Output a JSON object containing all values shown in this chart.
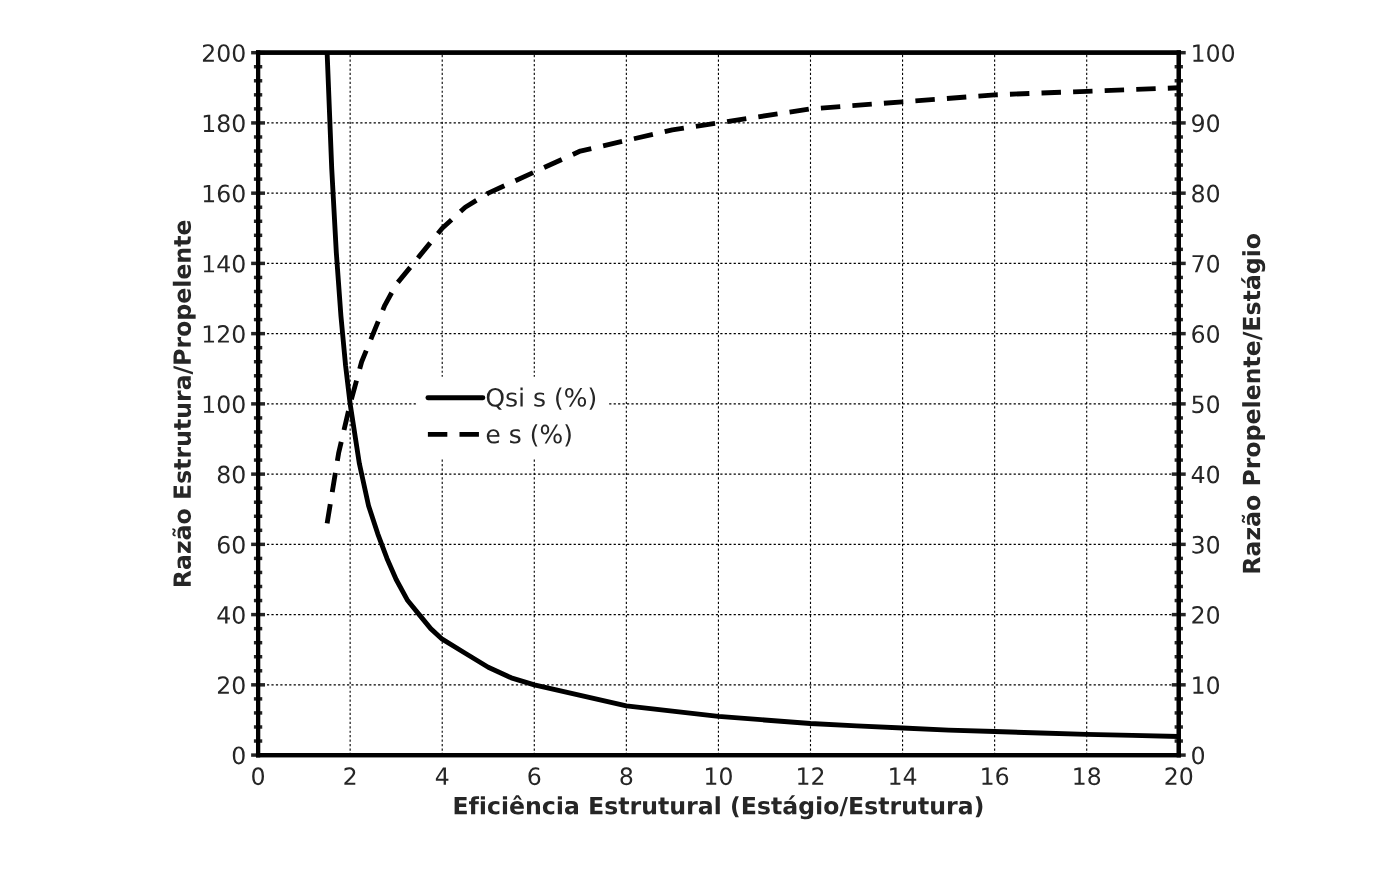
{
  "chart_data": {
    "type": "line",
    "xlabel": "Eficiência Estrutural (Estágio/Estrutura)",
    "ylabel": "Razão Estrutura/Propelente",
    "y2label": "Razão Propelente/Estágio",
    "series": [
      {
        "name": "Qsi s (%)",
        "color": "#000000",
        "line_style": "solid",
        "x": [
          1.5,
          1.6,
          1.7,
          1.8,
          1.9,
          2,
          2.2,
          2.4,
          2.6,
          2.8,
          3,
          3.25,
          3.5,
          3.75,
          4,
          4.5,
          5,
          5.5,
          6,
          7,
          8,
          9,
          10,
          11,
          12,
          13,
          14,
          15,
          16,
          17,
          18,
          19,
          20
        ],
        "values": [
          200,
          167,
          143,
          125,
          111,
          100,
          83,
          71,
          63,
          56,
          50,
          44,
          40,
          36,
          33,
          29,
          25,
          22,
          20,
          17,
          14,
          12.5,
          11,
          10,
          9,
          8.3,
          7.7,
          7.1,
          6.7,
          6.3,
          5.9,
          5.6,
          5.3
        ]
      },
      {
        "name": "e s (%)",
        "color": "#000000",
        "line_style": "dashed",
        "axis": "y2",
        "x": [
          1.5,
          1.75,
          2,
          2.25,
          2.5,
          2.75,
          3,
          3.5,
          4,
          4.5,
          5,
          6,
          7,
          8,
          9,
          10,
          12,
          14,
          16,
          18,
          20
        ],
        "values": [
          33,
          43,
          50,
          56,
          60,
          64,
          67,
          71,
          75,
          78,
          80,
          83,
          86,
          87.5,
          89,
          90,
          92,
          93,
          94,
          94.5,
          95
        ]
      }
    ],
    "xlim": [
      0,
      20
    ],
    "xticks": [
      0,
      2,
      4,
      6,
      8,
      10,
      12,
      14,
      16,
      18,
      20
    ],
    "ylim": [
      0,
      200
    ],
    "yticks": [
      0,
      20,
      40,
      60,
      80,
      100,
      120,
      140,
      160,
      180,
      200
    ],
    "y2lim": [
      0,
      100
    ],
    "y2ticks": [
      0,
      10,
      20,
      30,
      40,
      50,
      60,
      70,
      80,
      90,
      100
    ],
    "grid": true,
    "legend": "left"
  }
}
